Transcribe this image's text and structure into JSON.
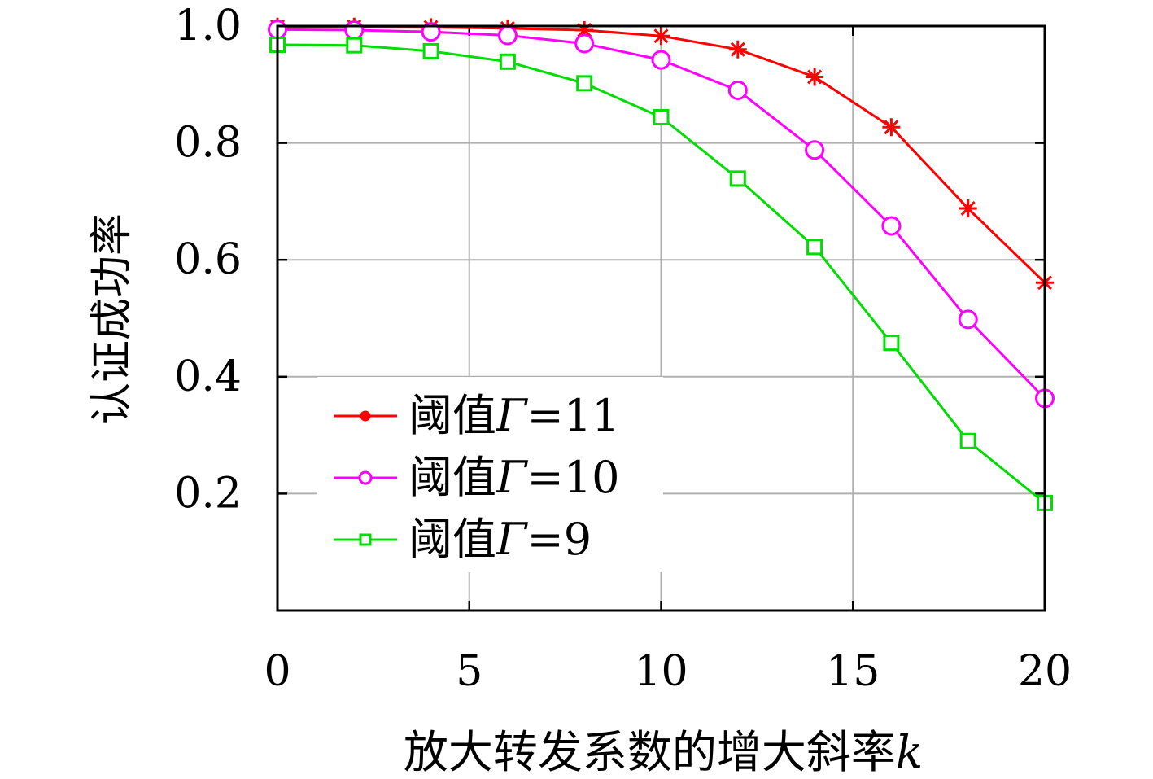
{
  "chart_data": {
    "type": "line",
    "xlabel_text": "放大转发系数的增大斜率",
    "xlabel_var": "k",
    "ylabel": "认证成功率",
    "xlim": [
      0,
      20
    ],
    "ylim": [
      0,
      1.0
    ],
    "x_ticks": [
      0,
      5,
      10,
      15,
      20
    ],
    "x_tick_labels": [
      "0",
      "5",
      "10",
      "15",
      "20"
    ],
    "y_ticks": [
      0.2,
      0.4,
      0.6,
      0.8,
      1.0
    ],
    "y_tick_labels": [
      "0.2",
      "0.4",
      "0.6",
      "0.8",
      "1.0"
    ],
    "grid": true,
    "legend_position": "lower-left",
    "series": [
      {
        "legend_prefix": "阈值",
        "legend_symbol": "Γ",
        "legend_suffix": "=11",
        "color": "#ff0000",
        "marker": "asterisk",
        "x": [
          0,
          2,
          4,
          6,
          8,
          10,
          12,
          14,
          16,
          18,
          20
        ],
        "y": [
          0.999,
          0.999,
          0.998,
          0.996,
          0.993,
          0.983,
          0.96,
          0.913,
          0.827,
          0.688,
          0.561
        ]
      },
      {
        "legend_prefix": "阈值",
        "legend_symbol": "Γ",
        "legend_suffix": "=10",
        "color": "#ff00ff",
        "marker": "circle",
        "x": [
          0,
          2,
          4,
          6,
          8,
          10,
          12,
          14,
          16,
          18,
          20
        ],
        "y": [
          0.994,
          0.993,
          0.99,
          0.984,
          0.97,
          0.942,
          0.89,
          0.788,
          0.658,
          0.498,
          0.363
        ]
      },
      {
        "legend_prefix": "阈值",
        "legend_symbol": "Γ",
        "legend_suffix": "=9",
        "color": "#00dd00",
        "marker": "square",
        "x": [
          0,
          2,
          4,
          6,
          8,
          10,
          12,
          14,
          16,
          18,
          20
        ],
        "y": [
          0.968,
          0.967,
          0.957,
          0.939,
          0.902,
          0.844,
          0.739,
          0.622,
          0.458,
          0.29,
          0.184
        ]
      }
    ]
  }
}
